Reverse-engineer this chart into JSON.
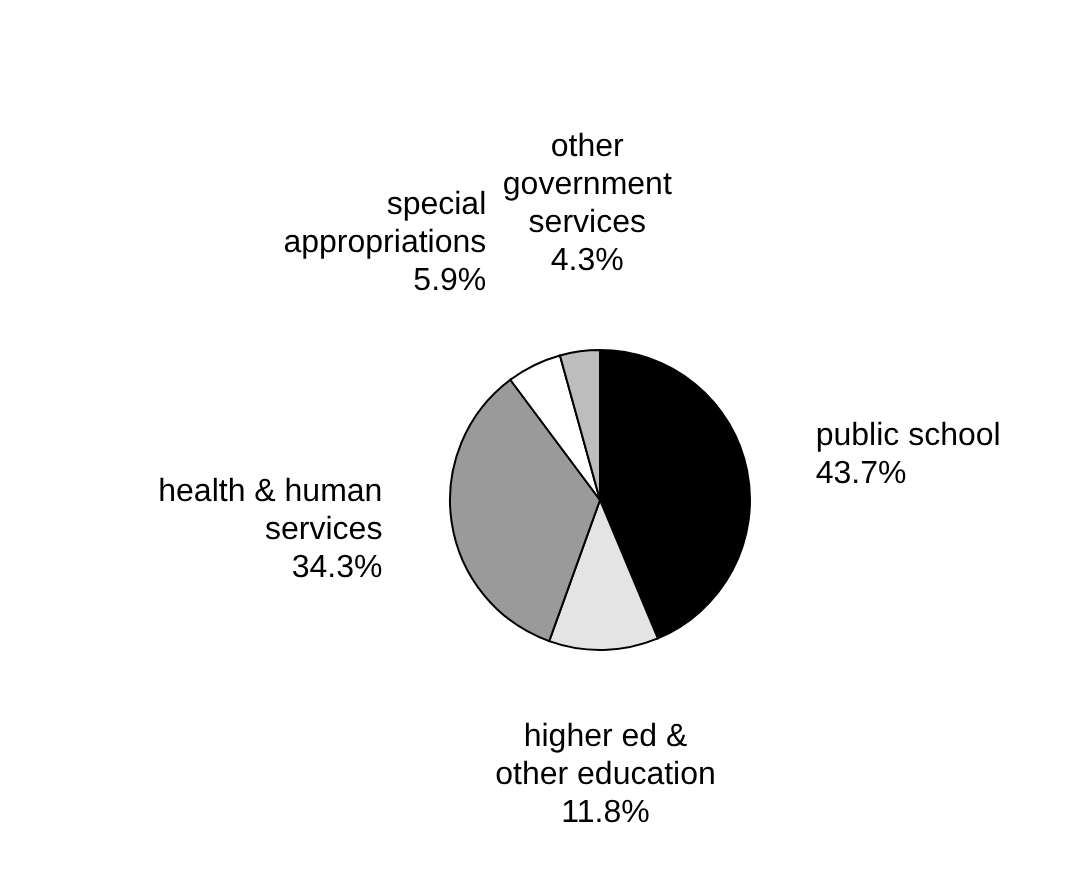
{
  "chart_data": {
    "type": "pie",
    "categories": [
      "public school",
      "higher ed & other education",
      "health & human services",
      "special appropriations",
      "other government services"
    ],
    "values": [
      43.7,
      11.8,
      34.3,
      5.9,
      4.3
    ],
    "value_labels": [
      "43.7%",
      "11.8%",
      "34.3%",
      "5.9%",
      "4.3%"
    ],
    "colors": [
      "#000000",
      "#e4e4e4",
      "#9a9a9a",
      "#ffffff",
      "#bdbdbd"
    ]
  }
}
